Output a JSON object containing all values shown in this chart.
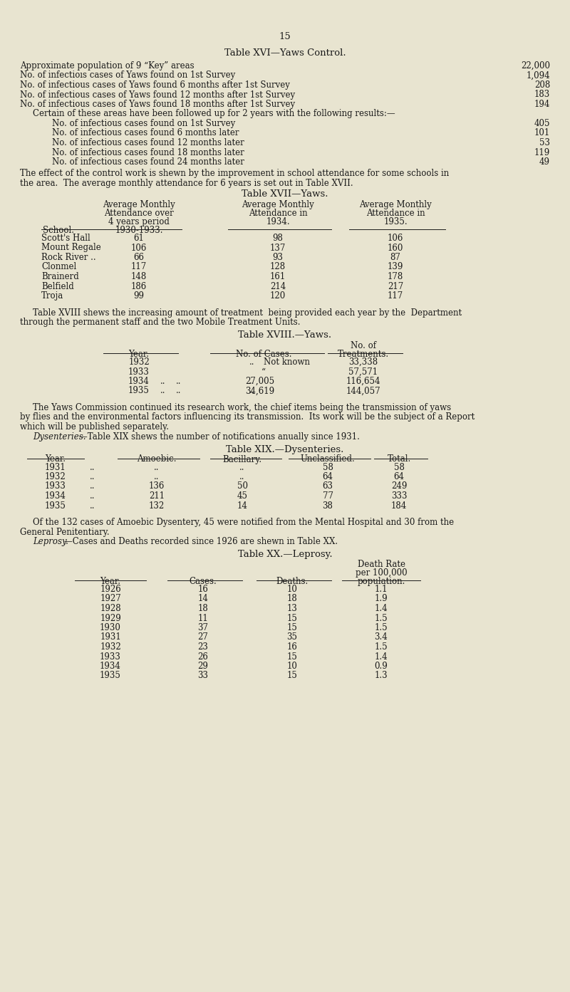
{
  "bg_color": "#e8e4d0",
  "text_color": "#1a1a1a",
  "page_number": "15",
  "title_xvi": "Table XVI—Yaws Control.",
  "section_xvi": [
    [
      "Approximate population of 9 “Key” areas",
      "22,000"
    ],
    [
      "No. of infectioıs cases of Yaws found on 1st Survey",
      "1,094"
    ],
    [
      "No. of infectious cases of Yaws found 6 months after 1st Survey",
      "208"
    ],
    [
      "No. of infectious cases of Yaws found 12 months after 1st Survey",
      "183"
    ],
    [
      "No. of infectious cases of Yaws found 18 months after 1st Survey",
      "194"
    ]
  ],
  "section_xvi_note": "Certain of these areas have been followed up for 2 years with the following results:—",
  "section_xvi_sub": [
    [
      "No. of infectious cases found on 1st Survey",
      "405"
    ],
    [
      "No. of infectious cases found 6 months later",
      "101"
    ],
    [
      "No. of infectious cases found 12 months later",
      "53"
    ],
    [
      "No. of infectious cases found 18 months later",
      "119"
    ],
    [
      "No. of infectious cases found 24 months later",
      "49"
    ]
  ],
  "para1a": "The effect of the control work is shewn by the improvement in school attendance for some schools in",
  "para1b": "the area.  The average monthly attendance for 6 years is set out in Table XVII.",
  "title_xvii": "Table XVII—Yaws.",
  "school_col_header": "School.",
  "schools": [
    "Scott's Hall",
    "Mount Regale",
    "Rock River ..",
    "Clonmel",
    "Brainerd",
    "Belfield",
    "Troja"
  ],
  "schools_suffix": [
    "",
    "",
    "",
    "",
    "..",
    "..",
    ".."
  ],
  "attendance_1930_33": [
    "61",
    "106",
    "66",
    "117",
    "148",
    "186",
    "99"
  ],
  "attendance_1934": [
    "98",
    "137",
    "93",
    "128",
    "161",
    "214",
    "120"
  ],
  "attendance_1935": [
    "106",
    "160",
    "87",
    "139",
    "178",
    "217",
    "117"
  ],
  "para2a": "Table XVIII shews the increasing amount of treatment  being provided each year by the  Department",
  "para2b": "through the permanent staff and the two Mobile Treatment Units.",
  "title_xviii": "Table XVIII.—Yaws.",
  "yaws_years": [
    "1932",
    "1933",
    "1934",
    "1935"
  ],
  "yaws_year_dots": [
    "..",
    "..",
    "..",
    ".."
  ],
  "yaws_cases_dots": [
    "..",
    "..",
    "..",
    ".."
  ],
  "yaws_cases": [
    "Not known",
    "“",
    "27,005",
    "34,619"
  ],
  "yaws_treatments": [
    "33,338",
    "57,571",
    "116,654",
    "144,057"
  ],
  "para3a": "The Yaws Commission continued its research work, the chief items being the transmission of yaws",
  "para3b": "by flies and the environmental factors influencing its transmission.  Its work will be the subject of a Report",
  "para3c": "which will be published separately.",
  "para4": "    Dysenteries.—Table XIX shews the number of notifications anually since 1931.",
  "title_xix": "Table XIX.—Dysenteries.",
  "dysentery_years": [
    "1931",
    "1932",
    "1933",
    "1934",
    "1935"
  ],
  "dysentery_dots": [
    "..",
    "..",
    "..",
    "..",
    ".."
  ],
  "dysentery_amoebic": [
    "..",
    "..",
    "136",
    "211",
    "132"
  ],
  "dysentery_bacillary": [
    "..",
    "..",
    "50",
    "45",
    "14"
  ],
  "dysentery_unclassified": [
    "58",
    "64",
    "63",
    "77",
    "38"
  ],
  "dysentery_total": [
    "58",
    "64",
    "249",
    "333",
    "184"
  ],
  "para5a": "Of the 132 cases of Amoebic Dysentery, 45 were notified from the Mental Hospital and 30 from the",
  "para5b": "General Penitentiary.",
  "para6": "    Leprosy.—Cases and Deaths recorded since 1926 are shewn in Table XX.",
  "title_xx": "Table XX.—Leprosy.",
  "leprosy_years": [
    "1926",
    "1927",
    "1928",
    "1929",
    "1930",
    "1931",
    "1932",
    "1933",
    "1934",
    "1935"
  ],
  "leprosy_cases": [
    "16",
    "14",
    "18",
    "11",
    "37",
    "27",
    "23",
    "26",
    "29",
    "33"
  ],
  "leprosy_deaths": [
    "10",
    "18",
    "13",
    "15",
    "15",
    "35",
    "16",
    "15",
    "10",
    "15"
  ],
  "leprosy_rate": [
    "1.1",
    "1.9",
    "1.4",
    "1.5",
    "1.5",
    "3.4",
    "1.5",
    "1.4",
    "0.9",
    "1.3"
  ]
}
